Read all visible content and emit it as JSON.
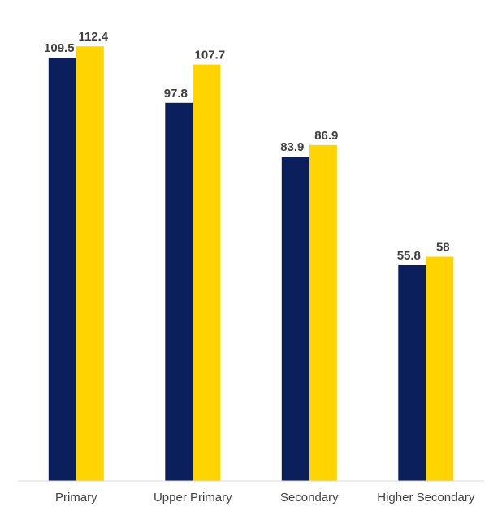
{
  "chart_data": {
    "type": "bar",
    "categories": [
      "Primary",
      "Upper Primary",
      "Secondary",
      "Higher Secondary"
    ],
    "series": [
      {
        "values": [
          109.5,
          97.8,
          83.9,
          55.8
        ],
        "color": "#0a1f5c"
      },
      {
        "values": [
          112.4,
          107.7,
          86.9,
          58
        ],
        "color": "#ffd400"
      }
    ],
    "data_labels": [
      [
        "109.5",
        "97.8",
        "83.9",
        "55.8"
      ],
      [
        "112.4",
        "107.7",
        "86.9",
        "58"
      ]
    ],
    "ylim": [
      0,
      120
    ],
    "grid": false,
    "legend": "none"
  }
}
